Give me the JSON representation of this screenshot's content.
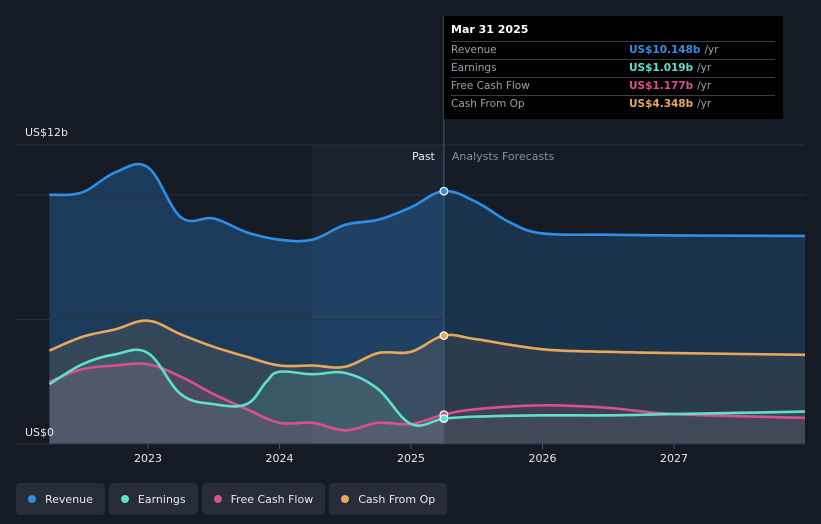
{
  "tooltip": {
    "date": "Mar 31 2025",
    "rows": [
      {
        "label": "Revenue",
        "value": "US$10.148b",
        "unit": "/yr",
        "color": "#2e8fe8"
      },
      {
        "label": "Earnings",
        "value": "US$1.019b",
        "unit": "/yr",
        "color": "#5ee0cc"
      },
      {
        "label": "Free Cash Flow",
        "value": "US$1.177b",
        "unit": "/yr",
        "color": "#d9518c"
      },
      {
        "label": "Cash From Op",
        "value": "US$4.348b",
        "unit": "/yr",
        "color": "#e8a85c"
      }
    ]
  },
  "legend": [
    {
      "label": "Revenue",
      "color": "#2e8fe8"
    },
    {
      "label": "Earnings",
      "color": "#5ee0cc"
    },
    {
      "label": "Free Cash Flow",
      "color": "#d9518c"
    },
    {
      "label": "Cash From Op",
      "color": "#e8a85c"
    }
  ],
  "chart_data": {
    "type": "line",
    "y_max_label": "US$12b",
    "y_min_label": "US$0",
    "ylim": [
      0,
      12
    ],
    "xlim": [
      2022.25,
      2028.0
    ],
    "x_ticks": [
      2023,
      2024,
      2025,
      2026,
      2027
    ],
    "x_tick_labels": [
      "2023",
      "2024",
      "2025",
      "2026",
      "2027"
    ],
    "past_label": "Past",
    "forecast_label": "Analysts Forecasts",
    "past_end_x": 2025.25,
    "highlight_start_x": 2024.25,
    "series": [
      {
        "name": "Revenue",
        "color": "#2e8fe8",
        "points": [
          [
            2022.25,
            10.0
          ],
          [
            2022.5,
            10.1
          ],
          [
            2022.75,
            10.9
          ],
          [
            2023.0,
            11.1
          ],
          [
            2023.25,
            9.1
          ],
          [
            2023.5,
            9.05
          ],
          [
            2023.75,
            8.5
          ],
          [
            2024.0,
            8.2
          ],
          [
            2024.25,
            8.2
          ],
          [
            2024.5,
            8.8
          ],
          [
            2024.75,
            9.0
          ],
          [
            2025.0,
            9.5
          ],
          [
            2025.25,
            10.148
          ],
          [
            2025.5,
            9.7
          ],
          [
            2025.75,
            8.9
          ],
          [
            2026.0,
            8.45
          ],
          [
            2026.5,
            8.4
          ],
          [
            2027.0,
            8.37
          ],
          [
            2028.0,
            8.35
          ]
        ]
      },
      {
        "name": "Earnings",
        "color": "#5ee0cc",
        "points": [
          [
            2022.25,
            2.4
          ],
          [
            2022.5,
            3.2
          ],
          [
            2022.75,
            3.6
          ],
          [
            2023.0,
            3.65
          ],
          [
            2023.25,
            2.0
          ],
          [
            2023.5,
            1.6
          ],
          [
            2023.75,
            1.6
          ],
          [
            2023.9,
            2.5
          ],
          [
            2024.0,
            2.9
          ],
          [
            2024.25,
            2.8
          ],
          [
            2024.5,
            2.85
          ],
          [
            2024.75,
            2.2
          ],
          [
            2025.0,
            0.8
          ],
          [
            2025.25,
            1.019
          ],
          [
            2025.5,
            1.1
          ],
          [
            2026.0,
            1.15
          ],
          [
            2026.5,
            1.15
          ],
          [
            2027.0,
            1.2
          ],
          [
            2028.0,
            1.3
          ]
        ]
      },
      {
        "name": "Free Cash Flow",
        "color": "#d9518c",
        "points": [
          [
            2022.25,
            2.5
          ],
          [
            2022.5,
            3.0
          ],
          [
            2022.75,
            3.15
          ],
          [
            2023.0,
            3.2
          ],
          [
            2023.25,
            2.7
          ],
          [
            2023.5,
            2.0
          ],
          [
            2023.75,
            1.4
          ],
          [
            2024.0,
            0.85
          ],
          [
            2024.25,
            0.85
          ],
          [
            2024.5,
            0.55
          ],
          [
            2024.75,
            0.85
          ],
          [
            2025.0,
            0.8
          ],
          [
            2025.25,
            1.177
          ],
          [
            2025.5,
            1.4
          ],
          [
            2026.0,
            1.55
          ],
          [
            2026.5,
            1.45
          ],
          [
            2027.0,
            1.2
          ],
          [
            2028.0,
            1.05
          ]
        ]
      },
      {
        "name": "Cash From Op",
        "color": "#e8a85c",
        "points": [
          [
            2022.25,
            3.75
          ],
          [
            2022.5,
            4.3
          ],
          [
            2022.75,
            4.6
          ],
          [
            2023.0,
            4.95
          ],
          [
            2023.25,
            4.4
          ],
          [
            2023.5,
            3.9
          ],
          [
            2023.75,
            3.5
          ],
          [
            2024.0,
            3.15
          ],
          [
            2024.25,
            3.15
          ],
          [
            2024.5,
            3.1
          ],
          [
            2024.75,
            3.65
          ],
          [
            2025.0,
            3.7
          ],
          [
            2025.25,
            4.348
          ],
          [
            2025.5,
            4.2
          ],
          [
            2026.0,
            3.8
          ],
          [
            2026.5,
            3.7
          ],
          [
            2027.0,
            3.65
          ],
          [
            2028.0,
            3.58
          ]
        ]
      }
    ]
  }
}
